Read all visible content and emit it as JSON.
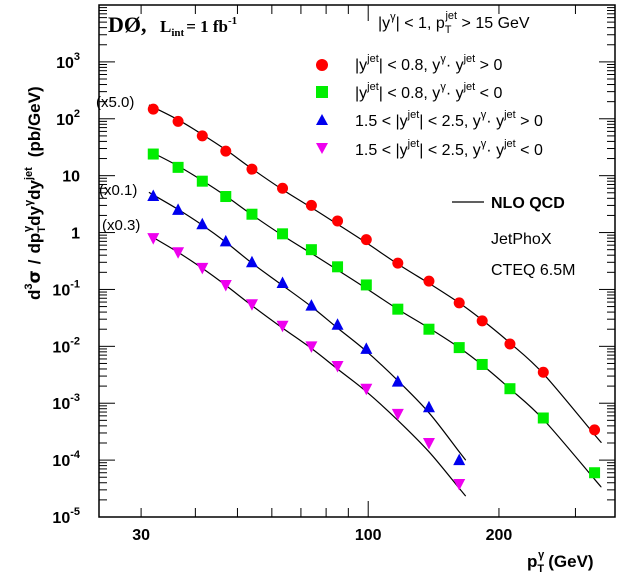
{
  "chart_data": {
    "type": "scatter",
    "experiment": "DØ",
    "luminosity": {
      "prefix": "L",
      "subscript": "int",
      "value": "= 1 fb",
      "exponent": "-1"
    },
    "xlabel": {
      "main": "p",
      "sub": "T",
      "sup": "γ",
      "unit": "(GeV)"
    },
    "ylabel": {
      "d3": "d",
      "d3_sup": "3",
      "sigma": "σ",
      "slash": "/",
      "dp": "dp",
      "dp_sub": "T",
      "dp_sup": "γ",
      "dy1": "dy",
      "dy1_sup": "γ",
      "dy2": "dy",
      "dy2_sup": "jet",
      "unit": "(pb/GeV)"
    },
    "x_scale": "log",
    "y_scale": "log",
    "xlim": [
      24,
      370
    ],
    "ylim": [
      1e-05,
      10000
    ],
    "x_ticks": [
      {
        "label": "30",
        "value": 30
      },
      {
        "label": "100",
        "value": 100
      },
      {
        "label": "200",
        "value": 200
      }
    ],
    "y_ticks": [
      {
        "base": "10",
        "exp": "-5",
        "value": 1e-05
      },
      {
        "base": "10",
        "exp": "-4",
        "value": 0.0001
      },
      {
        "base": "10",
        "exp": "-3",
        "value": 0.001
      },
      {
        "base": "10",
        "exp": "-2",
        "value": 0.01
      },
      {
        "base": "10",
        "exp": "-1",
        "value": 0.1
      },
      {
        "base": "1",
        "exp": "",
        "value": 1
      },
      {
        "base": "10",
        "exp": "",
        "value": 10
      },
      {
        "base": "10",
        "exp": "2",
        "value": 100
      },
      {
        "base": "10",
        "exp": "3",
        "value": 1000
      }
    ],
    "selection": "|y^γ| < 1,    p_T^jet > 15 GeV",
    "legend_position": "top-right",
    "series": [
      {
        "name": "|y^jet| < 0.8,  y^γ· y^jet > 0",
        "marker": "circle",
        "color": "#ff0000",
        "scale_label": "(x5.0)",
        "x": [
          32,
          36.5,
          41.5,
          47,
          54,
          63.5,
          74,
          85,
          99,
          117,
          138,
          162,
          183,
          212,
          253,
          332
        ],
        "y": [
          148,
          90,
          50,
          27,
          13,
          6.0,
          3.0,
          1.6,
          0.75,
          0.29,
          0.14,
          0.058,
          0.028,
          0.011,
          0.0035,
          0.00034
        ],
        "fit_y": [
          160,
          96,
          53,
          28.5,
          13.2,
          5.7,
          2.75,
          1.4,
          0.66,
          0.28,
          0.128,
          0.058,
          0.029,
          0.0115,
          0.0033,
          0.00028
        ]
      },
      {
        "name": "|y^jet| < 0.8,  y^γ· y^jet < 0",
        "marker": "square",
        "color": "#00ee00",
        "scale_label": "(x0.1)",
        "x": [
          32,
          36.5,
          41.5,
          47,
          54,
          63.5,
          74,
          85,
          99,
          117,
          138,
          162,
          183,
          212,
          253,
          332
        ],
        "y": [
          24,
          14,
          8.0,
          4.3,
          2.1,
          0.95,
          0.5,
          0.25,
          0.12,
          0.045,
          0.02,
          0.0095,
          0.0048,
          0.0018,
          0.00055,
          6e-05
        ],
        "fit_y": [
          25,
          14.8,
          8.2,
          4.4,
          2.05,
          0.89,
          0.43,
          0.22,
          0.104,
          0.045,
          0.021,
          0.0095,
          0.0047,
          0.0018,
          0.00052,
          4.6e-05
        ]
      },
      {
        "name": "1.5 < |y^jet| < 2.5,  y^γ· y^jet > 0",
        "marker": "triangle-up",
        "color": "#0000ee",
        "scale_label": "(x0.3)",
        "x": [
          32,
          36.5,
          41.5,
          47,
          54,
          63.5,
          74,
          85,
          99,
          117,
          138,
          162
        ],
        "y": [
          4.4,
          2.5,
          1.4,
          0.7,
          0.3,
          0.13,
          0.052,
          0.024,
          0.009,
          0.0024,
          0.00085,
          0.0001
        ],
        "fit_y": [
          4.6,
          2.55,
          1.35,
          0.68,
          0.29,
          0.118,
          0.05,
          0.021,
          0.0082,
          0.0025,
          0.00068,
          0.00014
        ]
      },
      {
        "name": "1.5 < |y^jet| < 2.5,  y^γ· y^jet < 0",
        "marker": "triangle-down",
        "color": "#ee00ee",
        "scale_label": "",
        "x": [
          32,
          36.5,
          41.5,
          47,
          54,
          63.5,
          74,
          85,
          99,
          117,
          138,
          162
        ],
        "y": [
          0.8,
          0.45,
          0.24,
          0.12,
          0.055,
          0.023,
          0.01,
          0.0045,
          0.0018,
          0.00065,
          0.0002,
          3.8e-05
        ],
        "fit_y": [
          0.82,
          0.45,
          0.235,
          0.118,
          0.052,
          0.021,
          0.0092,
          0.004,
          0.0016,
          0.0005,
          0.00014,
          3.2e-05
        ]
      }
    ],
    "theory": {
      "label": "NLO QCD",
      "program": "JetPhoX",
      "pdf": "CTEQ 6.5M",
      "color": "#000000"
    }
  }
}
